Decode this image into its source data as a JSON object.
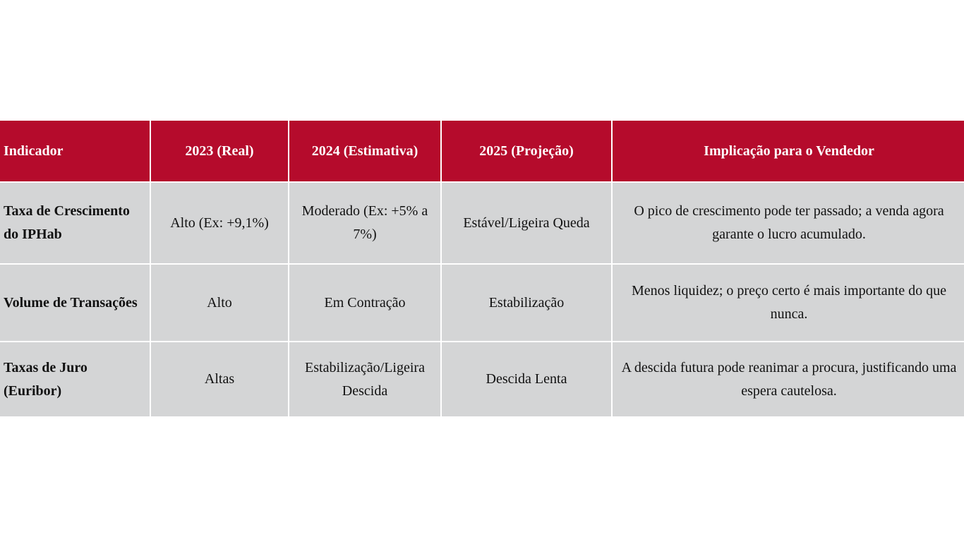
{
  "colors": {
    "header_bg": "#b50b2c",
    "cell_bg": "#d4d5d6"
  },
  "table": {
    "headers": [
      "Indicador",
      "2023 (Real)",
      "2024 (Estimativa)",
      "2025 (Projeção)",
      "Implicação para o Vendedor"
    ],
    "rows": [
      [
        "Taxa de Crescimento do IPHab",
        "Alto (Ex: +9,1%)",
        "Moderado (Ex: +5% a 7%)",
        "Estável/Ligeira Queda",
        "O pico de crescimento pode ter passado; a venda agora garante o lucro acumulado."
      ],
      [
        "Volume de Transações",
        "Alto",
        "Em Contração",
        "Estabilização",
        "Menos liquidez; o preço certo é mais importante do que nunca."
      ],
      [
        "Taxas de Juro (Euribor)",
        "Altas",
        "Estabilização/Ligeira Descida",
        "Descida Lenta",
        "A descida futura pode reanimar a procura, justificando uma espera cautelosa."
      ]
    ]
  }
}
